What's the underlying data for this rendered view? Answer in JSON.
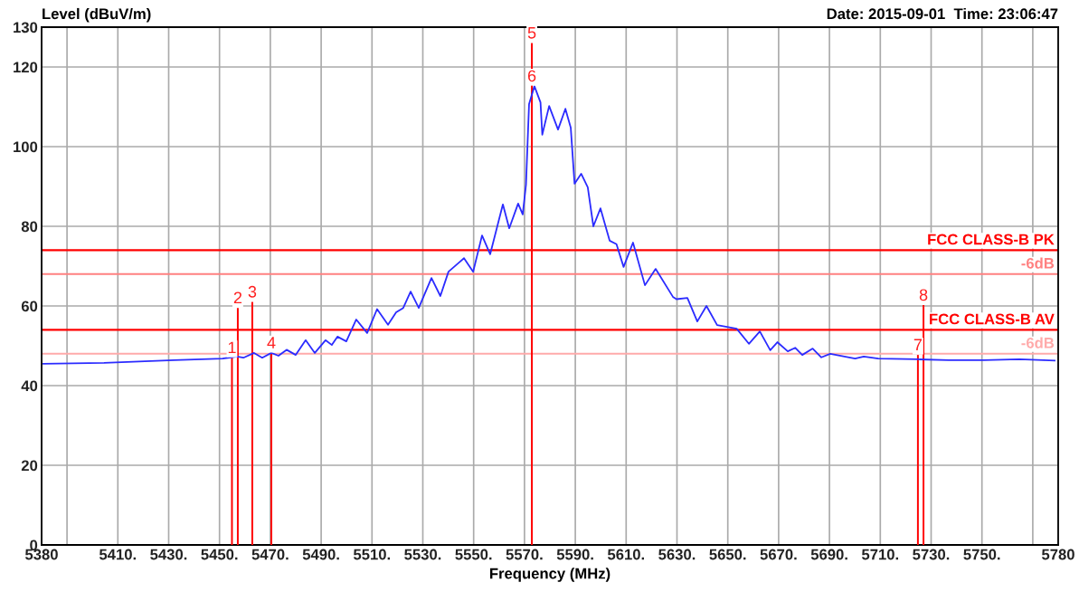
{
  "chart_data": {
    "type": "line",
    "ylabel": "Level (dBuV/m)",
    "xlabel": "Frequency (MHz)",
    "xlim": [
      5380,
      5780
    ],
    "xticks": [
      5380,
      {
        "value": 5390,
        "label": null
      },
      {
        "value": 5410,
        "label": "5410."
      },
      {
        "value": 5430,
        "label": "5430."
      },
      {
        "value": 5450,
        "label": "5450."
      },
      {
        "value": 5470,
        "label": "5470."
      },
      {
        "value": 5490,
        "label": "5490."
      },
      {
        "value": 5510,
        "label": "5510."
      },
      {
        "value": 5530,
        "label": "5530."
      },
      {
        "value": 5550,
        "label": "5550."
      },
      {
        "value": 5570,
        "label": "5570."
      },
      {
        "value": 5590,
        "label": "5590."
      },
      {
        "value": 5610,
        "label": "5610."
      },
      {
        "value": 5630,
        "label": "5630."
      },
      {
        "value": 5650,
        "label": "5650."
      },
      {
        "value": 5670,
        "label": "5670."
      },
      {
        "value": 5690,
        "label": "5690."
      },
      {
        "value": 5710,
        "label": "5710."
      },
      {
        "value": 5730,
        "label": "5730."
      },
      {
        "value": 5750,
        "label": "5750."
      },
      {
        "value": 5770,
        "label": null
      },
      5780
    ],
    "ylim": [
      0,
      130
    ],
    "yticks": [
      0,
      20,
      40,
      60,
      80,
      100,
      120,
      130
    ],
    "grid": true,
    "legend": false,
    "series": [
      {
        "color": "#2b2bff",
        "x": [
          5380.7,
          5404.6,
          5432.0,
          5451.2,
          5456.9,
          5459.4,
          5463.6,
          5466.8,
          5470.4,
          5473.2,
          5476.4,
          5480.0,
          5483.9,
          5487.5,
          5491.7,
          5494.2,
          5496.4,
          5499.9,
          5503.8,
          5508.1,
          5512.0,
          5516.3,
          5519.5,
          5522.3,
          5525.2,
          5528.4,
          5533.4,
          5536.9,
          5540.1,
          5546.2,
          5549.8,
          5553.3,
          5556.5,
          5561.5,
          5564.0,
          5567.5,
          5569.3,
          5570.6,
          5571.8,
          5573.9,
          5576.3,
          5577.0,
          5579.7,
          5583.2,
          5586.1,
          5588.2,
          5589.7,
          5592.3,
          5594.9,
          5597.1,
          5599.9,
          5603.5,
          5606.2,
          5609.0,
          5612.7,
          5617.4,
          5621.6,
          5628.4,
          5629.8,
          5634.1,
          5638.0,
          5641.6,
          5645.8,
          5653.5,
          5658.3,
          5662.6,
          5666.7,
          5669.5,
          5673.6,
          5676.5,
          5679.3,
          5683.4,
          5686.8,
          5690.3,
          5700.1,
          5703.5,
          5709.2,
          5724.8,
          5736.9,
          5750.8,
          5764.7,
          5778.6
        ],
        "values": [
          45.5,
          45.7,
          46.4,
          46.8,
          47.3,
          47.0,
          48.2,
          47.0,
          48.2,
          47.5,
          49.0,
          47.7,
          51.4,
          48.2,
          51.4,
          50.2,
          52.3,
          51.1,
          56.6,
          53.2,
          59.2,
          55.3,
          58.4,
          59.5,
          63.6,
          59.5,
          67.0,
          62.5,
          68.6,
          72.0,
          68.6,
          77.7,
          73.0,
          85.5,
          79.5,
          85.7,
          83.0,
          90.5,
          110.7,
          115.2,
          111.1,
          103.0,
          110.2,
          104.3,
          109.5,
          104.8,
          90.7,
          93.2,
          89.8,
          80.0,
          84.5,
          76.4,
          75.5,
          69.8,
          75.9,
          65.2,
          69.3,
          62.3,
          61.7,
          62.0,
          56.1,
          60.0,
          55.2,
          54.3,
          50.5,
          53.6,
          48.9,
          50.9,
          48.6,
          49.5,
          47.7,
          49.3,
          47.1,
          48.0,
          46.8,
          47.3,
          46.8,
          46.6,
          46.4,
          46.4,
          46.6,
          46.3
        ]
      },
      {
        "type": "bar",
        "color": "#ff0000",
        "x": [
          5454.9,
          5457.2,
          5462.9,
          5470.4,
          5572.9,
          5724.8,
          5727.0
        ],
        "values": [
          47,
          59.5,
          61,
          48.2,
          126,
          47.7,
          60.2
        ]
      }
    ],
    "ref_lines": [
      {
        "axis": "y",
        "value": 74,
        "label": "FCC CLASS-B PK",
        "color": "#ff0000"
      },
      {
        "axis": "y",
        "value": 68,
        "label": "-6dB",
        "color": "#ff8080"
      },
      {
        "axis": "y",
        "value": 54,
        "label": "FCC CLASS-B AV",
        "color": "#ff0000"
      },
      {
        "axis": "y",
        "value": 48,
        "label": "-6dB",
        "color": "#ffaaaa"
      }
    ],
    "annotations": [
      {
        "text": "1",
        "x": 5454.9,
        "y": 47
      },
      {
        "text": "2",
        "x": 5457.2,
        "y": 59.5
      },
      {
        "text": "3",
        "x": 5462.9,
        "y": 61
      },
      {
        "text": "4",
        "x": 5470.4,
        "y": 48.2
      },
      {
        "text": "5",
        "x": 5572.9,
        "y": 126
      },
      {
        "text": "6",
        "x": 5572.9,
        "y": 115.2
      },
      {
        "text": "7",
        "x": 5724.8,
        "y": 47.7
      },
      {
        "text": "8",
        "x": 5727.0,
        "y": 60.2
      },
      "Date: 2015-09-01  Time: 23:06:47"
    ]
  }
}
